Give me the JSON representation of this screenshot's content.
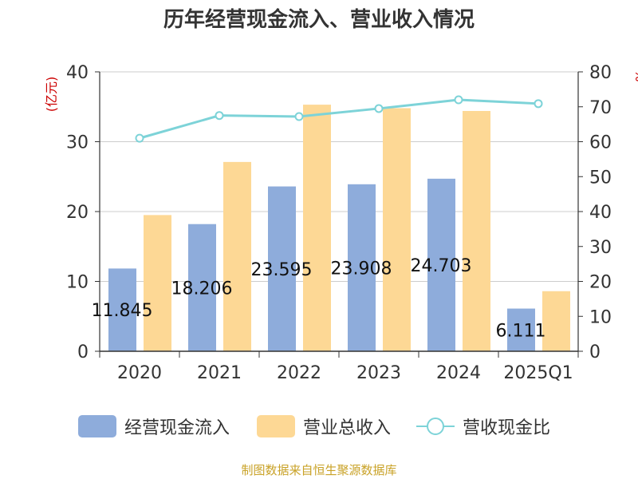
{
  "title": "历年经营现金流入、营业收入情况",
  "source": "制图数据来自恒生聚源数据库",
  "colors": {
    "cash": "#8eacdb",
    "revenue": "#fdd895",
    "ratio": "#7dd3d8",
    "grid": "#cccccc",
    "unit": "#cc0000"
  },
  "legend": {
    "cash": "经营现金流入",
    "revenue": "营业总收入",
    "ratio": "营收现金比"
  },
  "chart_data": {
    "type": "bar",
    "title": "历年经营现金流入、营业收入情况",
    "categories": [
      "2020",
      "2021",
      "2022",
      "2023",
      "2024",
      "2025Q1"
    ],
    "series": [
      {
        "name": "经营现金流入",
        "axis": "left",
        "values": [
          11.845,
          18.206,
          23.595,
          23.908,
          24.703,
          6.111
        ],
        "labels": [
          "11.845",
          "18.206",
          "23.595",
          "23.908",
          "24.703",
          "6.111"
        ]
      },
      {
        "name": "营业总收入",
        "axis": "left",
        "values": [
          19.5,
          27.1,
          35.3,
          34.8,
          34.4,
          8.6
        ]
      },
      {
        "name": "营收现金比",
        "axis": "right",
        "type": "line",
        "values": [
          61.0,
          67.5,
          67.2,
          69.5,
          72.0,
          70.9
        ]
      }
    ],
    "ylabel_left": "(亿元)",
    "ylabel_right": "%",
    "ylim_left": [
      0,
      40
    ],
    "ylim_right": [
      0,
      80
    ],
    "yticks_left": [
      "0",
      "10",
      "20",
      "30",
      "40"
    ],
    "yticks_right": [
      "0",
      "10",
      "20",
      "30",
      "40",
      "50",
      "60",
      "70",
      "80"
    ],
    "grid": true,
    "legend_position": "bottom"
  }
}
